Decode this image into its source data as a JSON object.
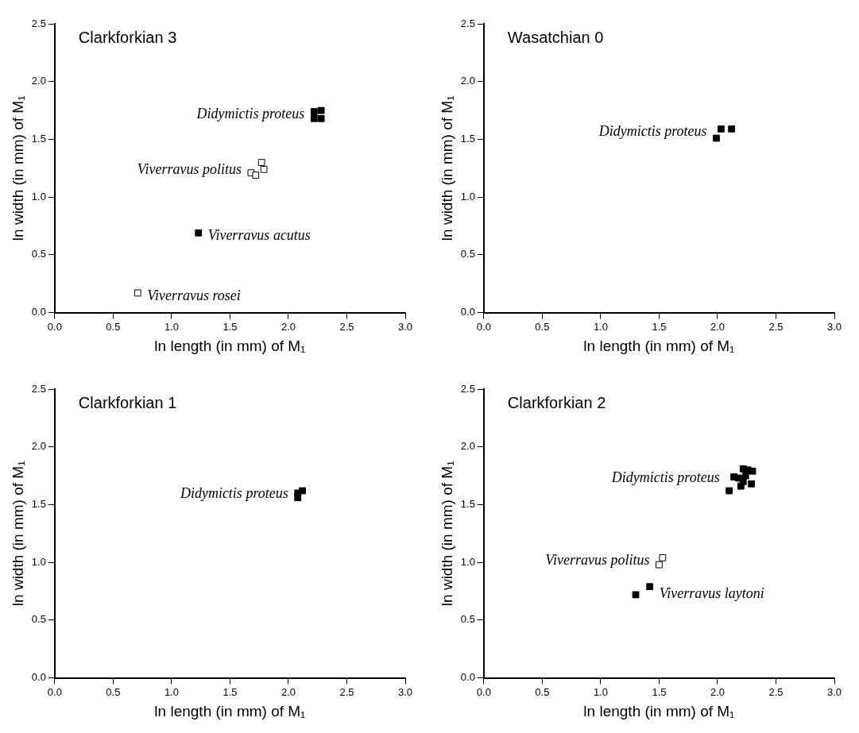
{
  "chart_data": [
    {
      "type": "scatter",
      "title": "Clarkforkian 3",
      "xlabel": "ln length (in mm) of M₁",
      "ylabel": "ln width (in mm) of M₁",
      "xlim": [
        0,
        3
      ],
      "ylim": [
        0,
        2.5
      ],
      "xticks": [
        {
          "value": 0,
          "label": "0.0"
        },
        {
          "value": 0.5,
          "label": "0.5"
        },
        {
          "value": 1,
          "label": "1.0"
        },
        {
          "value": 1.5,
          "label": "1.5"
        },
        {
          "value": 2,
          "label": "2.0"
        },
        {
          "value": 2.5,
          "label": "2.5"
        },
        {
          "value": 3,
          "label": "3.0"
        }
      ],
      "yticks": [
        {
          "value": 0,
          "label": "0.0"
        },
        {
          "value": 0.5,
          "label": "0.5"
        },
        {
          "value": 1,
          "label": "1.0"
        },
        {
          "value": 1.5,
          "label": "1.5"
        },
        {
          "value": 2,
          "label": "2.0"
        },
        {
          "value": 2.5,
          "label": "2.5"
        }
      ],
      "grid": false,
      "legend": false,
      "marker": "square",
      "series": [
        {
          "name": "Didymictis proteus",
          "color": "#000000",
          "x": [
            2.22,
            2.28,
            2.22,
            2.28
          ],
          "values": [
            1.68,
            1.68,
            1.74,
            1.75
          ]
        },
        {
          "name": "Viverravus politus",
          "color": "#ffffff",
          "x": [
            1.68,
            1.72,
            1.77,
            1.79
          ],
          "values": [
            1.21,
            1.19,
            1.3,
            1.24
          ]
        },
        {
          "name": "Viverravus acutus",
          "color": "#000000",
          "x": [
            1.23
          ],
          "values": [
            0.69
          ]
        },
        {
          "name": "Viverravus rosei",
          "color": "#ffffff",
          "x": [
            0.71
          ],
          "values": [
            0.17
          ]
        }
      ]
    },
    {
      "type": "scatter",
      "title": "Wasatchian 0",
      "xlabel": "ln length (in mm) of M₁",
      "ylabel": "ln width (in mm) of M₁",
      "xlim": [
        0,
        3
      ],
      "ylim": [
        0,
        2.5
      ],
      "xticks": [
        {
          "value": 0,
          "label": "0.0"
        },
        {
          "value": 0.5,
          "label": "0.5"
        },
        {
          "value": 1,
          "label": "1.0"
        },
        {
          "value": 1.5,
          "label": "1.5"
        },
        {
          "value": 2,
          "label": "2.0"
        },
        {
          "value": 2.5,
          "label": "2.5"
        },
        {
          "value": 3,
          "label": "3.0"
        }
      ],
      "yticks": [
        {
          "value": 0,
          "label": "0.0"
        },
        {
          "value": 0.5,
          "label": "0.5"
        },
        {
          "value": 1,
          "label": "1.0"
        },
        {
          "value": 1.5,
          "label": "1.5"
        },
        {
          "value": 2,
          "label": "2.0"
        },
        {
          "value": 2.5,
          "label": "2.5"
        }
      ],
      "grid": false,
      "legend": false,
      "marker": "square",
      "series": [
        {
          "name": "Didymictis proteus",
          "color": "#000000",
          "x": [
            1.99,
            2.03,
            2.12
          ],
          "values": [
            1.51,
            1.59,
            1.59
          ]
        }
      ]
    },
    {
      "type": "scatter",
      "title": "Clarkforkian 1",
      "xlabel": "ln length (in mm) of M₁",
      "ylabel": "ln width (in mm) of M₁",
      "xlim": [
        0,
        3
      ],
      "ylim": [
        0,
        2.5
      ],
      "xticks": [
        {
          "value": 0,
          "label": "0.0"
        },
        {
          "value": 0.5,
          "label": "0.5"
        },
        {
          "value": 1,
          "label": "1.0"
        },
        {
          "value": 1.5,
          "label": "1.5"
        },
        {
          "value": 2,
          "label": "2.0"
        },
        {
          "value": 2.5,
          "label": "2.5"
        },
        {
          "value": 3,
          "label": "3.0"
        }
      ],
      "yticks": [
        {
          "value": 0,
          "label": "0.0"
        },
        {
          "value": 0.5,
          "label": "0.5"
        },
        {
          "value": 1,
          "label": "1.0"
        },
        {
          "value": 1.5,
          "label": "1.5"
        },
        {
          "value": 2,
          "label": "2.0"
        },
        {
          "value": 2.5,
          "label": "2.5"
        }
      ],
      "grid": false,
      "legend": false,
      "marker": "square",
      "series": [
        {
          "name": "Didymictis proteus",
          "color": "#000000",
          "x": [
            2.08,
            2.08,
            2.12
          ],
          "values": [
            1.56,
            1.6,
            1.62
          ]
        }
      ]
    },
    {
      "type": "scatter",
      "title": "Clarkforkian 2",
      "xlabel": "ln length (in mm) of M₁",
      "ylabel": "ln width (in mm) of M₁",
      "xlim": [
        0,
        3
      ],
      "ylim": [
        0,
        2.5
      ],
      "xticks": [
        {
          "value": 0,
          "label": "0.0"
        },
        {
          "value": 0.5,
          "label": "0.5"
        },
        {
          "value": 1,
          "label": "1.0"
        },
        {
          "value": 1.5,
          "label": "1.5"
        },
        {
          "value": 2,
          "label": "2.0"
        },
        {
          "value": 2.5,
          "label": "2.5"
        },
        {
          "value": 3,
          "label": "3.0"
        }
      ],
      "yticks": [
        {
          "value": 0,
          "label": "0.0"
        },
        {
          "value": 0.5,
          "label": "0.5"
        },
        {
          "value": 1,
          "label": "1.0"
        },
        {
          "value": 1.5,
          "label": "1.5"
        },
        {
          "value": 2,
          "label": "2.0"
        },
        {
          "value": 2.5,
          "label": "2.5"
        }
      ],
      "grid": false,
      "legend": false,
      "marker": "square",
      "series": [
        {
          "name": "Didymictis proteus",
          "color": "#000000",
          "x": [
            2.1,
            2.14,
            2.2,
            2.22,
            2.24,
            2.26,
            2.3,
            2.29,
            2.22,
            2.18
          ],
          "values": [
            1.62,
            1.74,
            1.66,
            1.81,
            1.75,
            1.8,
            1.79,
            1.68,
            1.7,
            1.73
          ]
        },
        {
          "name": "Viverravus politus",
          "color": "#ffffff",
          "x": [
            1.5,
            1.53
          ],
          "values": [
            0.98,
            1.04
          ]
        },
        {
          "name": "Viverravus laytoni",
          "color": "#000000",
          "x": [
            1.3,
            1.42
          ],
          "values": [
            0.72,
            0.79
          ]
        }
      ]
    }
  ]
}
